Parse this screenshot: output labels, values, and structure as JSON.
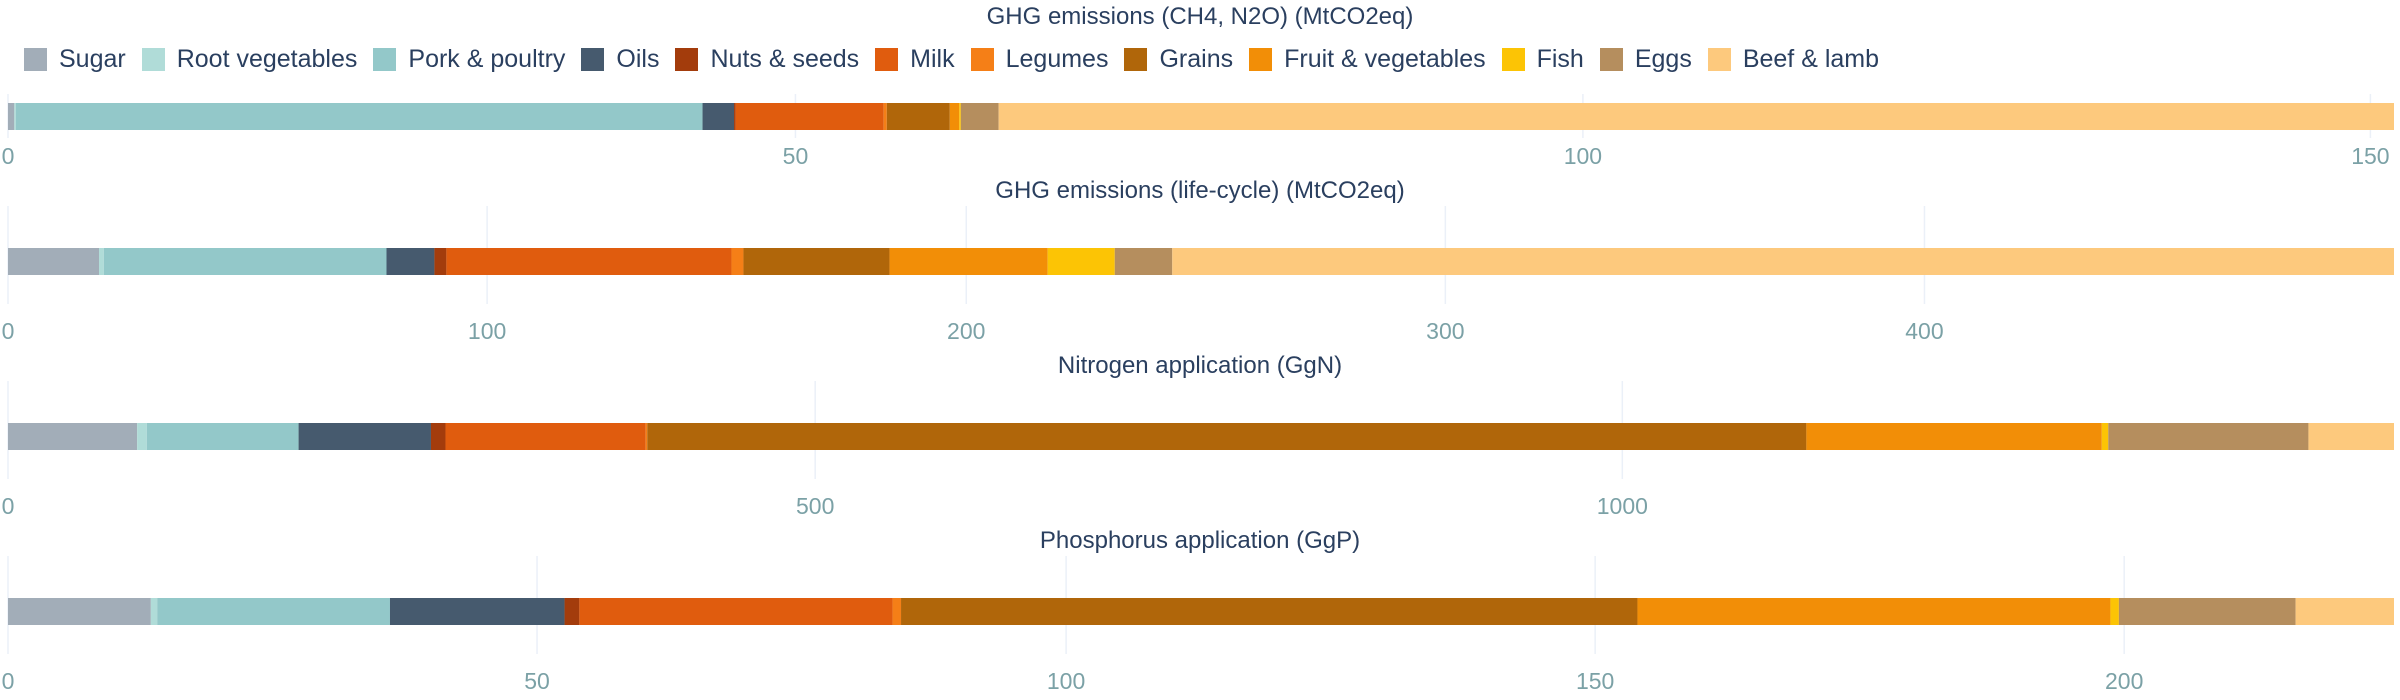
{
  "legend": {
    "items": [
      {
        "label": "Sugar",
        "color": "#a2adb8"
      },
      {
        "label": "Root vegetables",
        "color": "#b0dcd8"
      },
      {
        "label": "Pork & poultry",
        "color": "#93c8c9"
      },
      {
        "label": "Oils",
        "color": "#465a6e"
      },
      {
        "label": "Nuts & seeds",
        "color": "#a33c0c"
      },
      {
        "label": "Milk",
        "color": "#e05c0e"
      },
      {
        "label": "Legumes",
        "color": "#f57f17"
      },
      {
        "label": "Grains",
        "color": "#b0660a"
      },
      {
        "label": "Fruit & vegetables",
        "color": "#f28e07"
      },
      {
        "label": "Fish",
        "color": "#fcc405"
      },
      {
        "label": "Eggs",
        "color": "#b58e5e"
      },
      {
        "label": "Beef & lamb",
        "color": "#fdc97d"
      }
    ]
  },
  "chart_data": [
    {
      "type": "bar",
      "orientation": "horizontal",
      "stacked": true,
      "title": "GHG emissions (CH4, N2O) (MtCO2eq)",
      "xlim": [
        0,
        151.5
      ],
      "ticks": [
        0,
        50,
        100,
        150
      ],
      "grid": true,
      "segments": [
        {
          "name": "Sugar",
          "value": 0.4
        },
        {
          "name": "Root vegetables",
          "value": 0.1
        },
        {
          "name": "Pork & poultry",
          "value": 43.6
        },
        {
          "name": "Oils",
          "value": 2.0
        },
        {
          "name": "Nuts & seeds",
          "value": 0.1
        },
        {
          "name": "Milk",
          "value": 9.4
        },
        {
          "name": "Legumes",
          "value": 0.2
        },
        {
          "name": "Grains",
          "value": 4.0
        },
        {
          "name": "Fruit & vegetables",
          "value": 0.6
        },
        {
          "name": "Fish",
          "value": 0.1
        },
        {
          "name": "Eggs",
          "value": 2.4
        },
        {
          "name": "Beef & lamb",
          "value": 88.6
        }
      ]
    },
    {
      "type": "bar",
      "orientation": "horizontal",
      "stacked": true,
      "title": "GHG emissions (life-cycle) (MtCO2eq)",
      "xlim": [
        0,
        498
      ],
      "ticks": [
        0,
        100,
        200,
        300,
        400
      ],
      "grid": true,
      "segments": [
        {
          "name": "Sugar",
          "value": 19
        },
        {
          "name": "Root vegetables",
          "value": 1
        },
        {
          "name": "Pork & poultry",
          "value": 59
        },
        {
          "name": "Oils",
          "value": 10
        },
        {
          "name": "Nuts & seeds",
          "value": 2.5
        },
        {
          "name": "Milk",
          "value": 59.5
        },
        {
          "name": "Legumes",
          "value": 2.5
        },
        {
          "name": "Grains",
          "value": 30.5
        },
        {
          "name": "Fruit & vegetables",
          "value": 33
        },
        {
          "name": "Fish",
          "value": 14
        },
        {
          "name": "Eggs",
          "value": 12
        },
        {
          "name": "Beef & lamb",
          "value": 255
        }
      ]
    },
    {
      "type": "bar",
      "orientation": "horizontal",
      "stacked": true,
      "title": "Nitrogen application (GgN)",
      "xlim": [
        0,
        1478
      ],
      "ticks": [
        0,
        500,
        1000
      ],
      "grid": true,
      "segments": [
        {
          "name": "Sugar",
          "value": 80
        },
        {
          "name": "Root vegetables",
          "value": 6
        },
        {
          "name": "Pork & poultry",
          "value": 94
        },
        {
          "name": "Oils",
          "value": 82
        },
        {
          "name": "Nuts & seeds",
          "value": 9
        },
        {
          "name": "Milk",
          "value": 124
        },
        {
          "name": "Legumes",
          "value": 1
        },
        {
          "name": "Grains",
          "value": 718
        },
        {
          "name": "Fruit & vegetables",
          "value": 183
        },
        {
          "name": "Fish",
          "value": 4
        },
        {
          "name": "Eggs",
          "value": 124
        },
        {
          "name": "Beef & lamb",
          "value": 53
        }
      ]
    },
    {
      "type": "bar",
      "orientation": "horizontal",
      "stacked": true,
      "title": "Phosphorus application (GgP)",
      "xlim": [
        0,
        225.5
      ],
      "ticks": [
        0,
        50,
        100,
        150,
        200
      ],
      "grid": true,
      "segments": [
        {
          "name": "Sugar",
          "value": 13.5
        },
        {
          "name": "Root vegetables",
          "value": 0.6
        },
        {
          "name": "Pork & poultry",
          "value": 22.0
        },
        {
          "name": "Oils",
          "value": 16.5
        },
        {
          "name": "Nuts & seeds",
          "value": 1.4
        },
        {
          "name": "Milk",
          "value": 29.6
        },
        {
          "name": "Legumes",
          "value": 0.8
        },
        {
          "name": "Grains",
          "value": 69.6
        },
        {
          "name": "Fruit & vegetables",
          "value": 44.7
        },
        {
          "name": "Fish",
          "value": 0.8
        },
        {
          "name": "Eggs",
          "value": 16.7
        },
        {
          "name": "Beef & lamb",
          "value": 9.3
        }
      ]
    }
  ]
}
